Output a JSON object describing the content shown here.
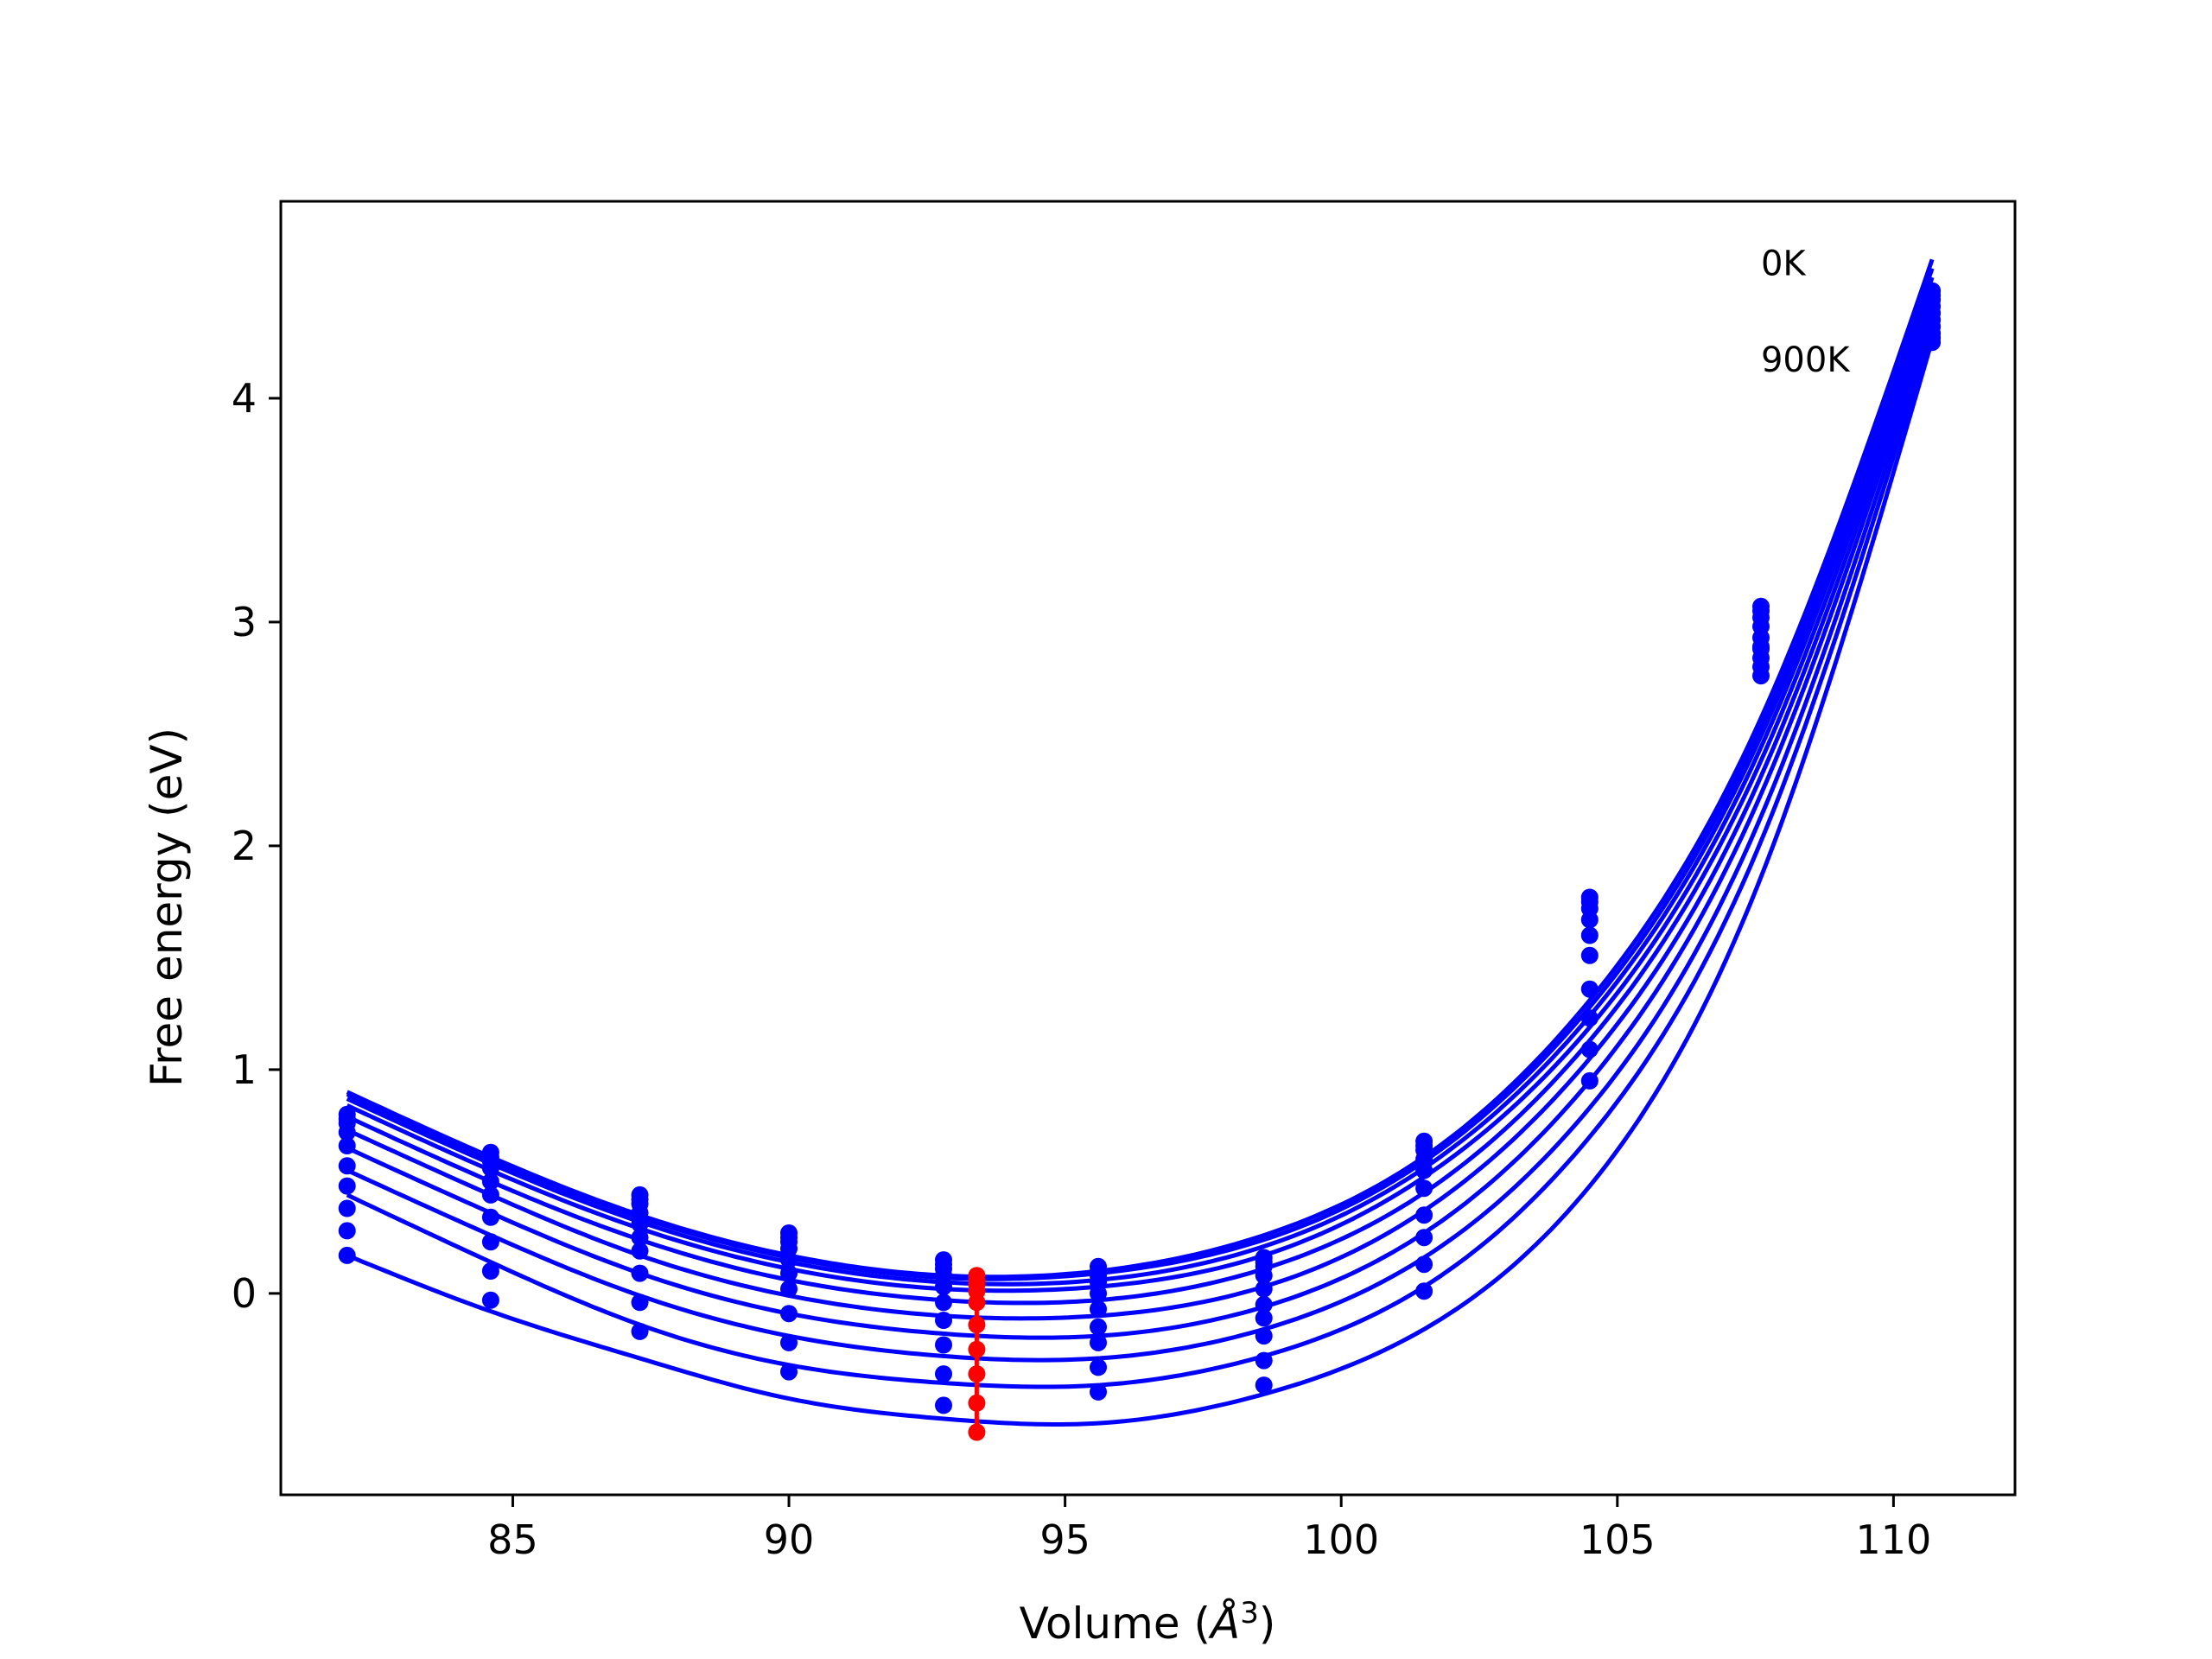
{
  "chart_data": {
    "type": "line",
    "xlabel": "Volume (",
    "xlabel_unit": "Å",
    "xlabel_exp": "3",
    "xlabel_close": ")",
    "ylabel": "Free energy (eV)",
    "xlim": [
      80.8,
      112.2
    ],
    "ylim": [
      -0.9,
      4.88
    ],
    "xticks": [
      85,
      90,
      95,
      100,
      105,
      110
    ],
    "yticks": [
      0,
      1,
      2,
      3,
      4
    ],
    "grid": false,
    "annotations": [
      {
        "text": "0K",
        "x": 107.6,
        "y": 4.55
      },
      {
        "text": "900K",
        "x": 107.6,
        "y": 4.12
      }
    ],
    "colors": {
      "curve": "#0000ff",
      "points": "#0000ff",
      "minimum": "#ff0000",
      "frame": "#000000"
    },
    "x_points": [
      82.0,
      84.6,
      87.3,
      90.0,
      92.8,
      95.6,
      98.6,
      101.5,
      104.5,
      107.6,
      110.7
    ],
    "curve_x_range": [
      82.0,
      110.7
    ],
    "equilibrium_volume": 93.4,
    "series": [
      {
        "temperature_index": 0,
        "curve": [
          0.9,
          0.61,
          0.35,
          0.17,
          0.08,
          0.1,
          0.26,
          0.61,
          1.31,
          2.57,
          4.62
        ],
        "points": [
          0.8,
          0.63,
          0.44,
          0.27,
          0.15,
          0.12,
          0.16,
          0.68,
          1.77,
          3.07,
          4.48
        ],
        "minimum": 0.08
      },
      {
        "temperature_index": 1,
        "curve": [
          0.89,
          0.6,
          0.34,
          0.16,
          0.07,
          0.09,
          0.24,
          0.59,
          1.28,
          2.53,
          4.58
        ],
        "points": [
          0.78,
          0.61,
          0.42,
          0.25,
          0.13,
          0.1,
          0.14,
          0.66,
          1.75,
          3.05,
          4.46
        ],
        "minimum": 0.06
      },
      {
        "temperature_index": 2,
        "curve": [
          0.87,
          0.58,
          0.32,
          0.14,
          0.05,
          0.06,
          0.21,
          0.56,
          1.24,
          2.49,
          4.54
        ],
        "points": [
          0.76,
          0.59,
          0.4,
          0.23,
          0.11,
          0.08,
          0.12,
          0.64,
          1.72,
          3.02,
          4.44
        ],
        "minimum": 0.04
      },
      {
        "temperature_index": 3,
        "curve": [
          0.84,
          0.55,
          0.29,
          0.11,
          0.02,
          0.03,
          0.17,
          0.52,
          1.19,
          2.44,
          4.5
        ],
        "points": [
          0.72,
          0.56,
          0.36,
          0.2,
          0.08,
          0.05,
          0.08,
          0.6,
          1.67,
          2.98,
          4.41
        ],
        "minimum": 0.01
      },
      {
        "temperature_index": 4,
        "curve": [
          0.79,
          0.5,
          0.24,
          0.06,
          -0.03,
          -0.03,
          0.11,
          0.45,
          1.13,
          2.38,
          4.46
        ],
        "points": [
          0.66,
          0.5,
          0.31,
          0.15,
          0.03,
          0.0,
          0.02,
          0.55,
          1.6,
          2.93,
          4.38
        ],
        "minimum": -0.04
      },
      {
        "temperature_index": 5,
        "curve": [
          0.73,
          0.44,
          0.17,
          -0.01,
          -0.1,
          -0.1,
          0.03,
          0.37,
          1.05,
          2.31,
          4.42
        ],
        "points": [
          0.57,
          0.44,
          0.25,
          0.09,
          -0.04,
          -0.07,
          -0.05,
          0.47,
          1.51,
          2.89,
          4.35
        ],
        "minimum": -0.14
      },
      {
        "temperature_index": 6,
        "curve": [
          0.65,
          0.36,
          0.09,
          -0.09,
          -0.18,
          -0.19,
          -0.06,
          0.27,
          0.95,
          2.23,
          4.38
        ],
        "points": [
          0.48,
          0.34,
          0.19,
          0.02,
          -0.12,
          -0.15,
          -0.11,
          0.35,
          1.36,
          2.84,
          4.32
        ],
        "minimum": -0.25
      },
      {
        "temperature_index": 7,
        "curve": [
          0.55,
          0.26,
          -0.01,
          -0.19,
          -0.28,
          -0.29,
          -0.16,
          0.16,
          0.83,
          2.13,
          4.34
        ],
        "points": [
          0.38,
          0.23,
          0.09,
          -0.09,
          -0.23,
          -0.22,
          -0.19,
          0.25,
          1.23,
          2.8,
          4.29
        ],
        "minimum": -0.36
      },
      {
        "temperature_index": 8,
        "curve": [
          0.44,
          0.14,
          -0.14,
          -0.32,
          -0.4,
          -0.41,
          -0.28,
          0.03,
          0.7,
          2.02,
          4.3
        ],
        "points": [
          0.28,
          0.1,
          -0.04,
          -0.22,
          -0.36,
          -0.33,
          -0.3,
          0.13,
          1.09,
          2.76,
          4.27
        ],
        "minimum": -0.49
      },
      {
        "temperature_index": 9,
        "curve": [
          0.17,
          -0.08,
          -0.29,
          -0.47,
          -0.56,
          -0.58,
          -0.45,
          -0.16,
          0.48,
          1.86,
          4.26
        ],
        "points": [
          0.17,
          -0.03,
          -0.17,
          -0.35,
          -0.5,
          -0.44,
          -0.41,
          0.01,
          0.95,
          2.88,
          4.25
        ],
        "minimum": -0.62
      }
    ]
  }
}
